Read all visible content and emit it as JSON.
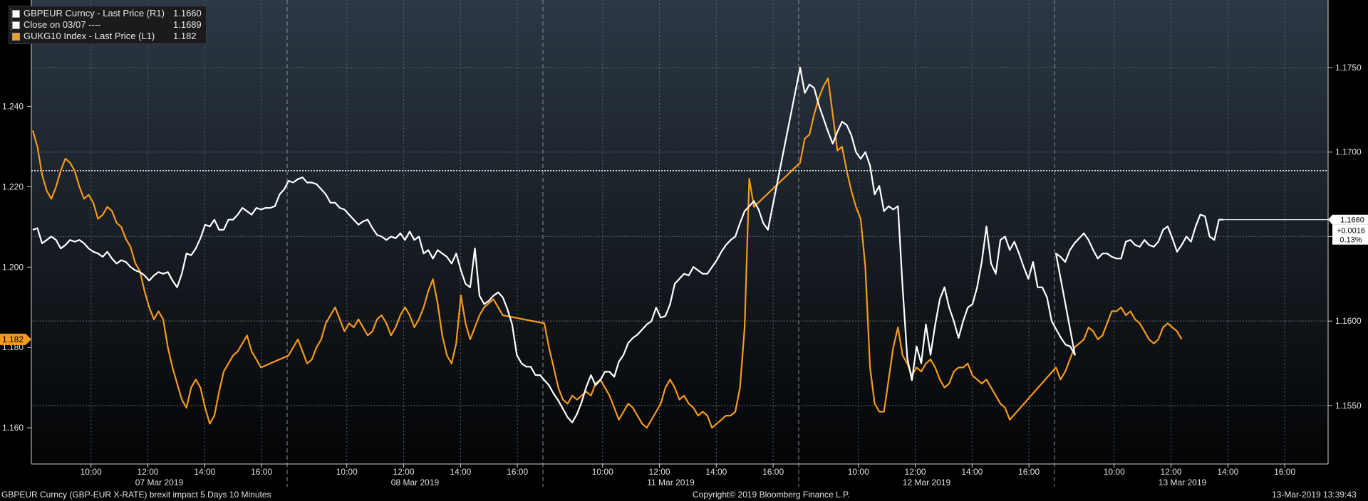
{
  "legend": {
    "rows": [
      {
        "label": "GBPEUR Curncy - Last Price (R1)",
        "value": "1.1660",
        "color": "#ffffff"
      },
      {
        "label": "Close on 03/07 ----",
        "value": "1.1689",
        "color": "#ffffff"
      },
      {
        "label": "GUKG10 Index - Last Price (L1)",
        "value": "1.182",
        "color": "#f59a1b"
      }
    ]
  },
  "footer": {
    "left": "GBPEUR Curncy (GBP-EUR X-RATE) brexit impact 5 Days 10 Minutes",
    "center": "Copyright© 2019 Bloomberg Finance L.P.",
    "right": "13-Mar-2019 13:39:43"
  },
  "colors": {
    "background_top": "#2c3845",
    "background_bottom": "#030405",
    "gbpeur": "#ffffff",
    "gukg10": "#f59a1b",
    "grid": "#5a6470"
  },
  "chart_data": {
    "type": "line",
    "title": "",
    "x_axis": {
      "days": [
        "07 Mar 2019",
        "08 Mar 2019",
        "11 Mar 2019",
        "12 Mar 2019",
        "13 Mar 2019"
      ],
      "hour_ticks": [
        "10:00",
        "12:00",
        "14:00",
        "16:00"
      ],
      "session_hours": "08:00-17:00"
    },
    "left_axis": {
      "ticks": [
        "1.160",
        "1.180",
        "1.200",
        "1.220",
        "1.240"
      ],
      "ylim": [
        1.1508,
        1.2665
      ]
    },
    "right_axis": {
      "ticks": [
        "1.1550",
        "1.1600",
        "1.1650",
        "1.1700",
        "1.1750"
      ],
      "ylim": [
        1.1515,
        1.179
      ]
    },
    "reference_line": {
      "label": "Close on 03/07",
      "value": 1.1689,
      "axis": "right"
    },
    "last_value_tags": {
      "right": [
        "1.1660",
        "+0.0016",
        "0.13%"
      ],
      "left": "1.182"
    },
    "grid": true,
    "legend_position": "top-left",
    "series": [
      {
        "name": "GBPEUR Curncy - Last Price (R1)",
        "axis": "right",
        "day_values": [
          [
            1.1654,
            1.1655,
            1.1646,
            1.1648,
            1.165,
            1.1648,
            1.1643,
            1.1645,
            1.1648,
            1.1647,
            1.1648,
            1.1646,
            1.1643,
            1.1641,
            1.164,
            1.1638,
            1.1641,
            1.1637,
            1.1634,
            1.1636,
            1.1635,
            1.1632,
            1.163,
            1.1629,
            1.1627,
            1.1624,
            1.1627,
            1.1629,
            1.1628,
            1.1629,
            1.1624,
            1.162,
            1.1628,
            1.164,
            1.1639,
            1.1643,
            1.1649,
            1.1657,
            1.1656,
            1.166,
            1.1654,
            1.1654,
            1.166,
            1.166,
            1.1663,
            1.1667,
            1.1665,
            1.1663,
            1.1667,
            1.1666,
            1.1667,
            1.1667,
            1.1668,
            1.1675,
            1.1678
          ],
          [
            1.1683,
            1.1682,
            1.1684,
            1.1685,
            1.1682,
            1.1682,
            1.1681,
            1.1678,
            1.1675,
            1.167,
            1.167,
            1.1667,
            1.1666,
            1.1663,
            1.166,
            1.1657,
            1.1659,
            1.166,
            1.1655,
            1.1651,
            1.165,
            1.1648,
            1.165,
            1.1649,
            1.1652,
            1.1648,
            1.1653,
            1.1648,
            1.165,
            1.164,
            1.1642,
            1.1637,
            1.1642,
            1.164,
            1.1638,
            1.1634,
            1.164,
            1.163,
            1.1622,
            1.162,
            1.1643,
            1.1615,
            1.161,
            1.1612,
            1.1615,
            1.1617,
            1.1614,
            1.1607,
            1.1598,
            1.158,
            1.1575,
            1.1573,
            1.1573,
            1.1568,
            1.1568
          ],
          [
            1.1565,
            1.1562,
            1.1557,
            1.1553,
            1.1548,
            1.1543,
            1.154,
            1.1545,
            1.1552,
            1.1561,
            1.1568,
            1.1562,
            1.1565,
            1.157,
            1.157,
            1.1567,
            1.1576,
            1.158,
            1.1587,
            1.159,
            1.1592,
            1.1595,
            1.1598,
            1.16,
            1.1608,
            1.1602,
            1.1603,
            1.161,
            1.1622,
            1.1625,
            1.1628,
            1.1627,
            1.1632,
            1.163,
            1.1628,
            1.1628,
            1.1632,
            1.1636,
            1.1641,
            1.1645,
            1.1648,
            1.165,
            1.1658,
            1.1665,
            1.1668,
            1.1671,
            1.1666,
            1.1658,
            1.1654
          ],
          [
            1.175,
            1.1735,
            1.174,
            1.1738,
            1.1728,
            1.172,
            1.1712,
            1.1705,
            1.1712,
            1.1718,
            1.1716,
            1.171,
            1.17,
            1.1696,
            1.17,
            1.1692,
            1.1675,
            1.168,
            1.1665,
            1.1668,
            1.1666,
            1.1668,
            1.162,
            1.1578,
            1.1565,
            1.1585,
            1.1575,
            1.1598,
            1.158,
            1.1598,
            1.1613,
            1.162,
            1.1608,
            1.16,
            1.159,
            1.16,
            1.1608,
            1.161,
            1.162,
            1.1635,
            1.1656,
            1.1634,
            1.1628,
            1.1648,
            1.165,
            1.1642,
            1.1647,
            1.164,
            1.1632,
            1.1625,
            1.1635,
            1.162,
            1.162,
            1.1614,
            1.16,
            1.1595,
            1.159,
            1.1586,
            1.1585,
            1.158
          ],
          [
            1.164,
            1.1638,
            1.1635,
            1.1642,
            1.1646,
            1.1649,
            1.1652,
            1.1648,
            1.1642,
            1.1637,
            1.164,
            1.164,
            1.1638,
            1.1637,
            1.1637,
            1.1647,
            1.1648,
            1.1645,
            1.1644,
            1.1648,
            1.1645,
            1.1644,
            1.1647,
            1.1654,
            1.1656,
            1.1649,
            1.1641,
            1.1645,
            1.165,
            1.1647,
            1.1656,
            1.1663,
            1.1662,
            1.165,
            1.1648,
            1.166,
            1.166
          ]
        ]
      },
      {
        "name": "GUKG10 Index - Last Price (L1)",
        "axis": "left",
        "day_values": [
          [
            1.234,
            1.23,
            1.223,
            1.219,
            1.217,
            1.22,
            1.224,
            1.227,
            1.226,
            1.224,
            1.22,
            1.217,
            1.218,
            1.216,
            1.212,
            1.213,
            1.215,
            1.214,
            1.211,
            1.21,
            1.207,
            1.205,
            1.201,
            1.199,
            1.194,
            1.19,
            1.187,
            1.189,
            1.187,
            1.18,
            1.175,
            1.171,
            1.167,
            1.165,
            1.17,
            1.172,
            1.17,
            1.165,
            1.161,
            1.163,
            1.169,
            1.174,
            1.176,
            1.178,
            1.179,
            1.181,
            1.183,
            1.179,
            1.177,
            1.175
          ],
          [
            1.178,
            1.18,
            1.182,
            1.179,
            1.176,
            1.177,
            1.18,
            1.182,
            1.186,
            1.188,
            1.19,
            1.187,
            1.184,
            1.186,
            1.185,
            1.187,
            1.185,
            1.183,
            1.184,
            1.187,
            1.188,
            1.186,
            1.183,
            1.185,
            1.188,
            1.19,
            1.188,
            1.185,
            1.187,
            1.19,
            1.194,
            1.197,
            1.191,
            1.183,
            1.178,
            1.176,
            1.181,
            1.193,
            1.186,
            1.182,
            1.185,
            1.188,
            1.19,
            1.191,
            1.192,
            1.19,
            1.188
          ],
          [
            1.186,
            1.18,
            1.175,
            1.17,
            1.167,
            1.166,
            1.168,
            1.167,
            1.168,
            1.169,
            1.168,
            1.171,
            1.172,
            1.17,
            1.168,
            1.165,
            1.162,
            1.164,
            1.166,
            1.165,
            1.163,
            1.161,
            1.16,
            1.162,
            1.164,
            1.166,
            1.17,
            1.172,
            1.17,
            1.167,
            1.168,
            1.166,
            1.165,
            1.163,
            1.164,
            1.163,
            1.16,
            1.161,
            1.162,
            1.163,
            1.163,
            1.164,
            1.17,
            1.185,
            1.222,
            1.215
          ],
          [
            1.226,
            1.232,
            1.233,
            1.238,
            1.242,
            1.245,
            1.247,
            1.238,
            1.229,
            1.23,
            1.224,
            1.219,
            1.215,
            1.212,
            1.2,
            1.175,
            1.166,
            1.164,
            1.164,
            1.172,
            1.18,
            1.185,
            1.178,
            1.176,
            1.173,
            1.175,
            1.174,
            1.176,
            1.177,
            1.175,
            1.172,
            1.17,
            1.171,
            1.174,
            1.175,
            1.175,
            1.176,
            1.173,
            1.172,
            1.171,
            1.172,
            1.17,
            1.168,
            1.166,
            1.165,
            1.162
          ],
          [
            1.175,
            1.172,
            1.174,
            1.177,
            1.18,
            1.181,
            1.182,
            1.185,
            1.184,
            1.182,
            1.183,
            1.186,
            1.189,
            1.189,
            1.19,
            1.188,
            1.189,
            1.187,
            1.186,
            1.184,
            1.182,
            1.181,
            1.182,
            1.185,
            1.186,
            1.185,
            1.184,
            1.182
          ]
        ]
      }
    ]
  }
}
